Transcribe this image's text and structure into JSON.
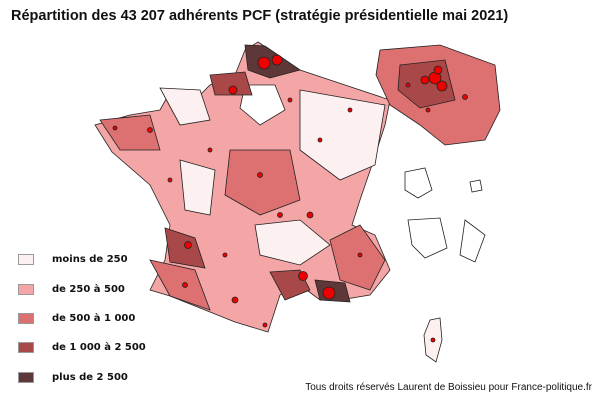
{
  "title": "Répartition des 43 207 adhérents PCF (stratégie présidentielle mai 2021)",
  "legend": [
    {
      "label": "moins de 250",
      "color": "#fdf0f0"
    },
    {
      "label": "de 250 à 500",
      "color": "#f4a5a5"
    },
    {
      "label": "de 500 à 1 000",
      "color": "#dd7070"
    },
    {
      "label": "de 1 000 à 2 500",
      "color": "#a94848"
    },
    {
      "label": "plus de 2 500",
      "color": "#5e3838"
    }
  ],
  "credit": "Tous droits réservés Laurent de Boissieu pour France-politique.fr"
}
